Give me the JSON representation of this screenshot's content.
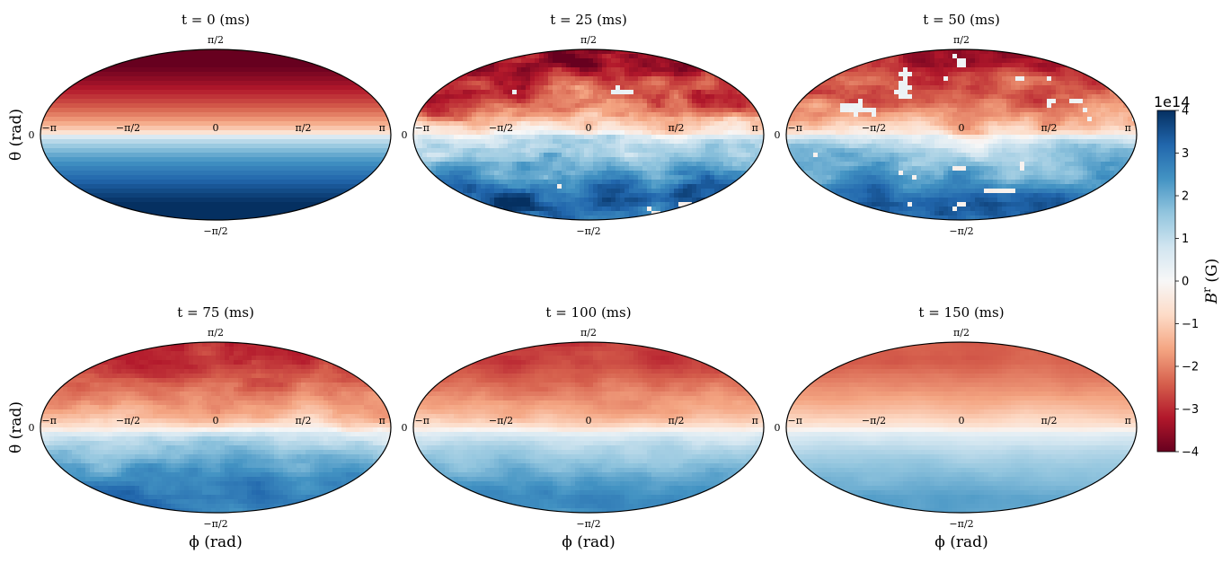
{
  "chart_data": {
    "type": "heatmap",
    "projection": "mollweide",
    "colormap": "RdBu",
    "quantity_label": "B^r (G)",
    "colorbar": {
      "min": -4,
      "max": 4,
      "ticks": [
        "4",
        "3",
        "2",
        "1",
        "0",
        "−1",
        "−2",
        "−3",
        "−4"
      ],
      "scale_label": "1e14",
      "label_main": "B",
      "label_sup": "r",
      "label_unit": " (G)"
    },
    "x_axis_label": "ϕ (rad)",
    "y_axis_label": "θ (rad)",
    "lon_ticks": [
      "−π",
      "−π/2",
      "0",
      "π/2",
      "π"
    ],
    "lat_ticks": {
      "top": "π/2",
      "zero": "0",
      "bottom": "−π/2"
    },
    "panels": [
      {
        "title": "t = 0 (ms)",
        "time_ms": 0,
        "north_amp": -4.0,
        "south_amp": 4.0,
        "turbulence": 0.0,
        "equator_offset": 0.0
      },
      {
        "title": "t = 25 (ms)",
        "time_ms": 25,
        "north_amp": -3.4,
        "south_amp": 3.5,
        "turbulence": 1.0,
        "equator_offset": 0.0
      },
      {
        "title": "t = 50 (ms)",
        "time_ms": 50,
        "north_amp": -3.0,
        "south_amp": 3.2,
        "turbulence": 0.75,
        "equator_offset": 0.0
      },
      {
        "title": "t = 75 (ms)",
        "time_ms": 75,
        "north_amp": -3.0,
        "south_amp": 3.0,
        "turbulence": 0.45,
        "equator_offset": 0.03
      },
      {
        "title": "t = 100 (ms)",
        "time_ms": 100,
        "north_amp": -2.8,
        "south_amp": 2.6,
        "turbulence": 0.3,
        "equator_offset": 0.03
      },
      {
        "title": "t = 150 (ms)",
        "time_ms": 150,
        "north_amp": -2.4,
        "south_amp": 2.2,
        "turbulence": 0.12,
        "equator_offset": 0.03
      }
    ]
  }
}
